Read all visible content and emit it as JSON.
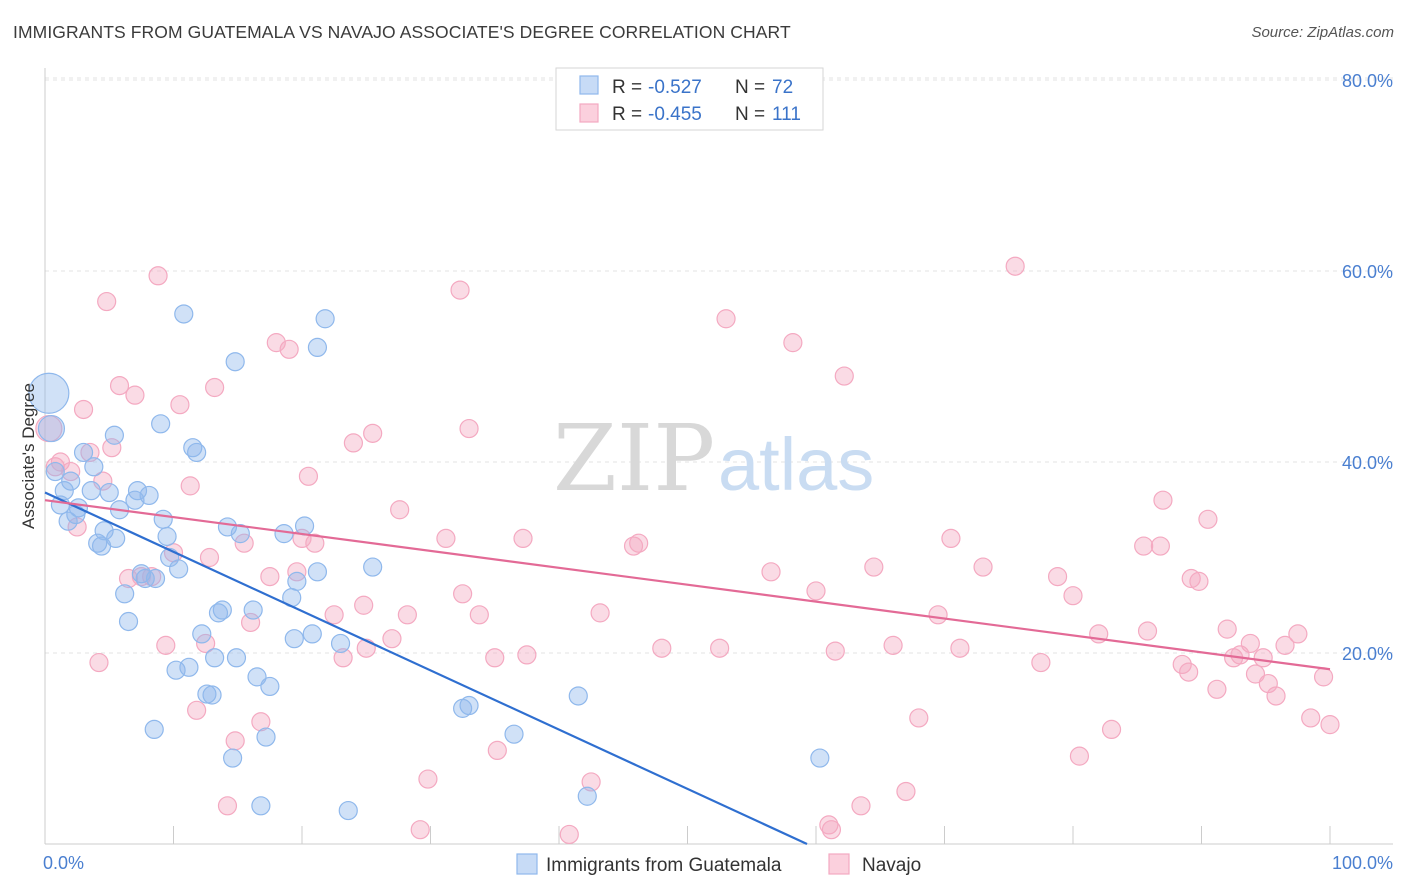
{
  "title": "IMMIGRANTS FROM GUATEMALA VS NAVAJO ASSOCIATE'S DEGREE CORRELATION CHART",
  "source": "Source: ZipAtlas.com",
  "watermark": {
    "zip": "ZIP",
    "atlas": "atlas"
  },
  "chart_data": {
    "type": "scatter",
    "xlabel": "",
    "ylabel": "Associate's Degree",
    "xlim": [
      0,
      100
    ],
    "ylim": [
      0,
      85
    ],
    "x_tick_labels": {
      "min": "0.0%",
      "max": "100.0%"
    },
    "y_ticks": [
      {
        "value": 20,
        "label": "20.0%"
      },
      {
        "value": 40,
        "label": "40.0%"
      },
      {
        "value": 60,
        "label": "60.0%"
      },
      {
        "value": 80,
        "label": "80.0%"
      }
    ],
    "grid": true,
    "legend_position": "top-center",
    "series": [
      {
        "name": "Immigrants from Guatemala",
        "color": "#8fb8ec",
        "line_color": "#2f6fd0",
        "R": "-0.527",
        "N": "72",
        "trend": {
          "x0": 0,
          "y0": 36.8,
          "x1": 59.3,
          "y1": 0
        },
        "points": [
          [
            0.3,
            47.2
          ],
          [
            0.5,
            43.5
          ],
          [
            0.8,
            39.0
          ],
          [
            1.2,
            35.5
          ],
          [
            1.5,
            37.0
          ],
          [
            1.8,
            33.8
          ],
          [
            2.0,
            38.0
          ],
          [
            2.4,
            34.5
          ],
          [
            2.6,
            35.2
          ],
          [
            3.0,
            41.0
          ],
          [
            3.6,
            37.0
          ],
          [
            3.8,
            39.5
          ],
          [
            4.1,
            31.5
          ],
          [
            4.4,
            31.2
          ],
          [
            4.6,
            32.8
          ],
          [
            5.0,
            36.8
          ],
          [
            5.4,
            42.8
          ],
          [
            5.5,
            32.0
          ],
          [
            5.8,
            35.0
          ],
          [
            6.2,
            26.2
          ],
          [
            6.5,
            23.3
          ],
          [
            7.0,
            36.0
          ],
          [
            7.2,
            37.0
          ],
          [
            7.5,
            28.3
          ],
          [
            7.8,
            27.8
          ],
          [
            8.1,
            36.5
          ],
          [
            8.5,
            12.0
          ],
          [
            8.6,
            27.8
          ],
          [
            9.0,
            44.0
          ],
          [
            9.2,
            34.0
          ],
          [
            9.5,
            32.2
          ],
          [
            9.7,
            30.0
          ],
          [
            10.2,
            18.2
          ],
          [
            10.4,
            28.8
          ],
          [
            10.8,
            55.5
          ],
          [
            11.2,
            18.5
          ],
          [
            11.5,
            41.5
          ],
          [
            11.8,
            41.0
          ],
          [
            12.2,
            22.0
          ],
          [
            12.6,
            15.7
          ],
          [
            13.0,
            15.6
          ],
          [
            13.2,
            19.5
          ],
          [
            13.5,
            24.2
          ],
          [
            13.8,
            24.5
          ],
          [
            14.2,
            33.2
          ],
          [
            14.6,
            9.0
          ],
          [
            14.8,
            50.5
          ],
          [
            14.9,
            19.5
          ],
          [
            15.2,
            32.5
          ],
          [
            16.2,
            24.5
          ],
          [
            16.5,
            17.5
          ],
          [
            16.8,
            4.0
          ],
          [
            17.2,
            11.2
          ],
          [
            17.5,
            16.5
          ],
          [
            18.6,
            32.5
          ],
          [
            19.2,
            25.8
          ],
          [
            19.4,
            21.5
          ],
          [
            19.6,
            27.5
          ],
          [
            20.2,
            33.3
          ],
          [
            20.8,
            22.0
          ],
          [
            21.2,
            28.5
          ],
          [
            21.2,
            52.0
          ],
          [
            21.8,
            55.0
          ],
          [
            23.0,
            21.0
          ],
          [
            23.6,
            3.5
          ],
          [
            25.5,
            29.0
          ],
          [
            33.0,
            14.5
          ],
          [
            32.5,
            14.2
          ],
          [
            36.5,
            11.5
          ],
          [
            41.5,
            15.5
          ],
          [
            42.2,
            5.0
          ],
          [
            60.3,
            9.0
          ]
        ]
      },
      {
        "name": "Navajo",
        "color": "#f4a9c1",
        "line_color": "#e36a96",
        "R": "-0.455",
        "N": "111",
        "trend": {
          "x0": 0,
          "y0": 36.0,
          "x1": 100,
          "y1": 18.3
        },
        "points": [
          [
            0.3,
            43.5
          ],
          [
            0.8,
            39.5
          ],
          [
            1.2,
            40.0
          ],
          [
            2.0,
            39.0
          ],
          [
            2.5,
            33.2
          ],
          [
            3.0,
            45.5
          ],
          [
            3.5,
            41.0
          ],
          [
            4.2,
            19.0
          ],
          [
            4.5,
            38.0
          ],
          [
            4.8,
            56.8
          ],
          [
            5.2,
            41.5
          ],
          [
            5.8,
            48.0
          ],
          [
            6.5,
            27.8
          ],
          [
            7.0,
            47.0
          ],
          [
            7.5,
            28.0
          ],
          [
            8.3,
            28.0
          ],
          [
            8.8,
            59.5
          ],
          [
            9.4,
            20.8
          ],
          [
            10.0,
            30.5
          ],
          [
            10.5,
            46.0
          ],
          [
            11.3,
            37.5
          ],
          [
            11.8,
            14.0
          ],
          [
            12.5,
            21.0
          ],
          [
            12.8,
            30.0
          ],
          [
            13.2,
            47.8
          ],
          [
            14.2,
            4.0
          ],
          [
            14.8,
            10.8
          ],
          [
            15.5,
            31.5
          ],
          [
            16.0,
            23.2
          ],
          [
            16.8,
            12.8
          ],
          [
            17.5,
            28.0
          ],
          [
            18.0,
            52.5
          ],
          [
            19.0,
            51.8
          ],
          [
            19.6,
            28.5
          ],
          [
            20.0,
            32.0
          ],
          [
            20.5,
            38.5
          ],
          [
            21.0,
            31.5
          ],
          [
            22.5,
            24.0
          ],
          [
            23.2,
            19.5
          ],
          [
            24.0,
            42.0
          ],
          [
            24.8,
            25.0
          ],
          [
            25.0,
            20.5
          ],
          [
            25.5,
            43.0
          ],
          [
            27.0,
            21.5
          ],
          [
            27.6,
            35.0
          ],
          [
            28.2,
            24.0
          ],
          [
            29.2,
            1.5
          ],
          [
            29.8,
            6.8
          ],
          [
            31.2,
            32.0
          ],
          [
            32.3,
            58.0
          ],
          [
            32.5,
            26.2
          ],
          [
            33.0,
            43.5
          ],
          [
            33.8,
            24.0
          ],
          [
            35.0,
            19.5
          ],
          [
            35.2,
            9.8
          ],
          [
            37.2,
            32.0
          ],
          [
            37.5,
            19.8
          ],
          [
            40.8,
            1.0
          ],
          [
            42.5,
            6.5
          ],
          [
            43.2,
            24.2
          ],
          [
            45.8,
            31.2
          ],
          [
            46.2,
            31.5
          ],
          [
            48.0,
            20.5
          ],
          [
            52.5,
            20.5
          ],
          [
            53.0,
            55.0
          ],
          [
            56.5,
            28.5
          ],
          [
            58.2,
            52.5
          ],
          [
            60.0,
            26.5
          ],
          [
            61.0,
            2.0
          ],
          [
            61.2,
            1.5
          ],
          [
            61.5,
            20.2
          ],
          [
            62.2,
            49.0
          ],
          [
            63.5,
            4.0
          ],
          [
            64.5,
            29.0
          ],
          [
            66.0,
            20.8
          ],
          [
            67.0,
            5.5
          ],
          [
            68.0,
            13.2
          ],
          [
            69.5,
            24.0
          ],
          [
            70.5,
            32.0
          ],
          [
            71.2,
            20.5
          ],
          [
            73.0,
            29.0
          ],
          [
            75.5,
            60.5
          ],
          [
            77.5,
            19.0
          ],
          [
            78.8,
            28.0
          ],
          [
            80.0,
            26.0
          ],
          [
            80.5,
            9.2
          ],
          [
            82.0,
            22.0
          ],
          [
            83.0,
            12.0
          ],
          [
            85.5,
            31.2
          ],
          [
            85.8,
            22.3
          ],
          [
            86.8,
            31.2
          ],
          [
            87.0,
            36.0
          ],
          [
            88.5,
            18.8
          ],
          [
            89.0,
            18.0
          ],
          [
            89.2,
            27.8
          ],
          [
            89.8,
            27.5
          ],
          [
            90.5,
            34.0
          ],
          [
            91.2,
            16.2
          ],
          [
            92.0,
            22.5
          ],
          [
            92.5,
            19.5
          ],
          [
            93.0,
            19.8
          ],
          [
            93.8,
            21.0
          ],
          [
            94.2,
            17.8
          ],
          [
            94.8,
            19.5
          ],
          [
            95.2,
            16.8
          ],
          [
            95.8,
            15.5
          ],
          [
            96.5,
            20.8
          ],
          [
            97.5,
            22.0
          ],
          [
            98.5,
            13.2
          ],
          [
            99.5,
            17.5
          ],
          [
            100.0,
            12.5
          ]
        ]
      }
    ]
  },
  "legend": {
    "r_label": "R =",
    "n_label": "N ="
  }
}
